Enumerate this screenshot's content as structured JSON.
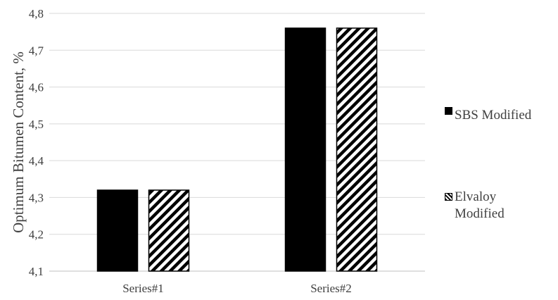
{
  "chart_data": {
    "type": "bar",
    "categories": [
      "Series#1",
      "Series#2"
    ],
    "series": [
      {
        "name": "SBS Modified",
        "values": [
          4.32,
          4.76
        ],
        "color": "#000000",
        "pattern": "solid"
      },
      {
        "name": "Elvaloy Modified",
        "values": [
          4.32,
          4.76
        ],
        "color": "#000000",
        "pattern": "diagonal-hatch"
      }
    ],
    "title": "",
    "xlabel": "",
    "ylabel": "Optimum Bitumen Content, %",
    "ylim": [
      4.1,
      4.8
    ],
    "yticks": [
      "4,1",
      "4,2",
      "4,3",
      "4,4",
      "4,5",
      "4,6",
      "4,7",
      "4,8"
    ],
    "grid": true,
    "legend_position": "right"
  }
}
